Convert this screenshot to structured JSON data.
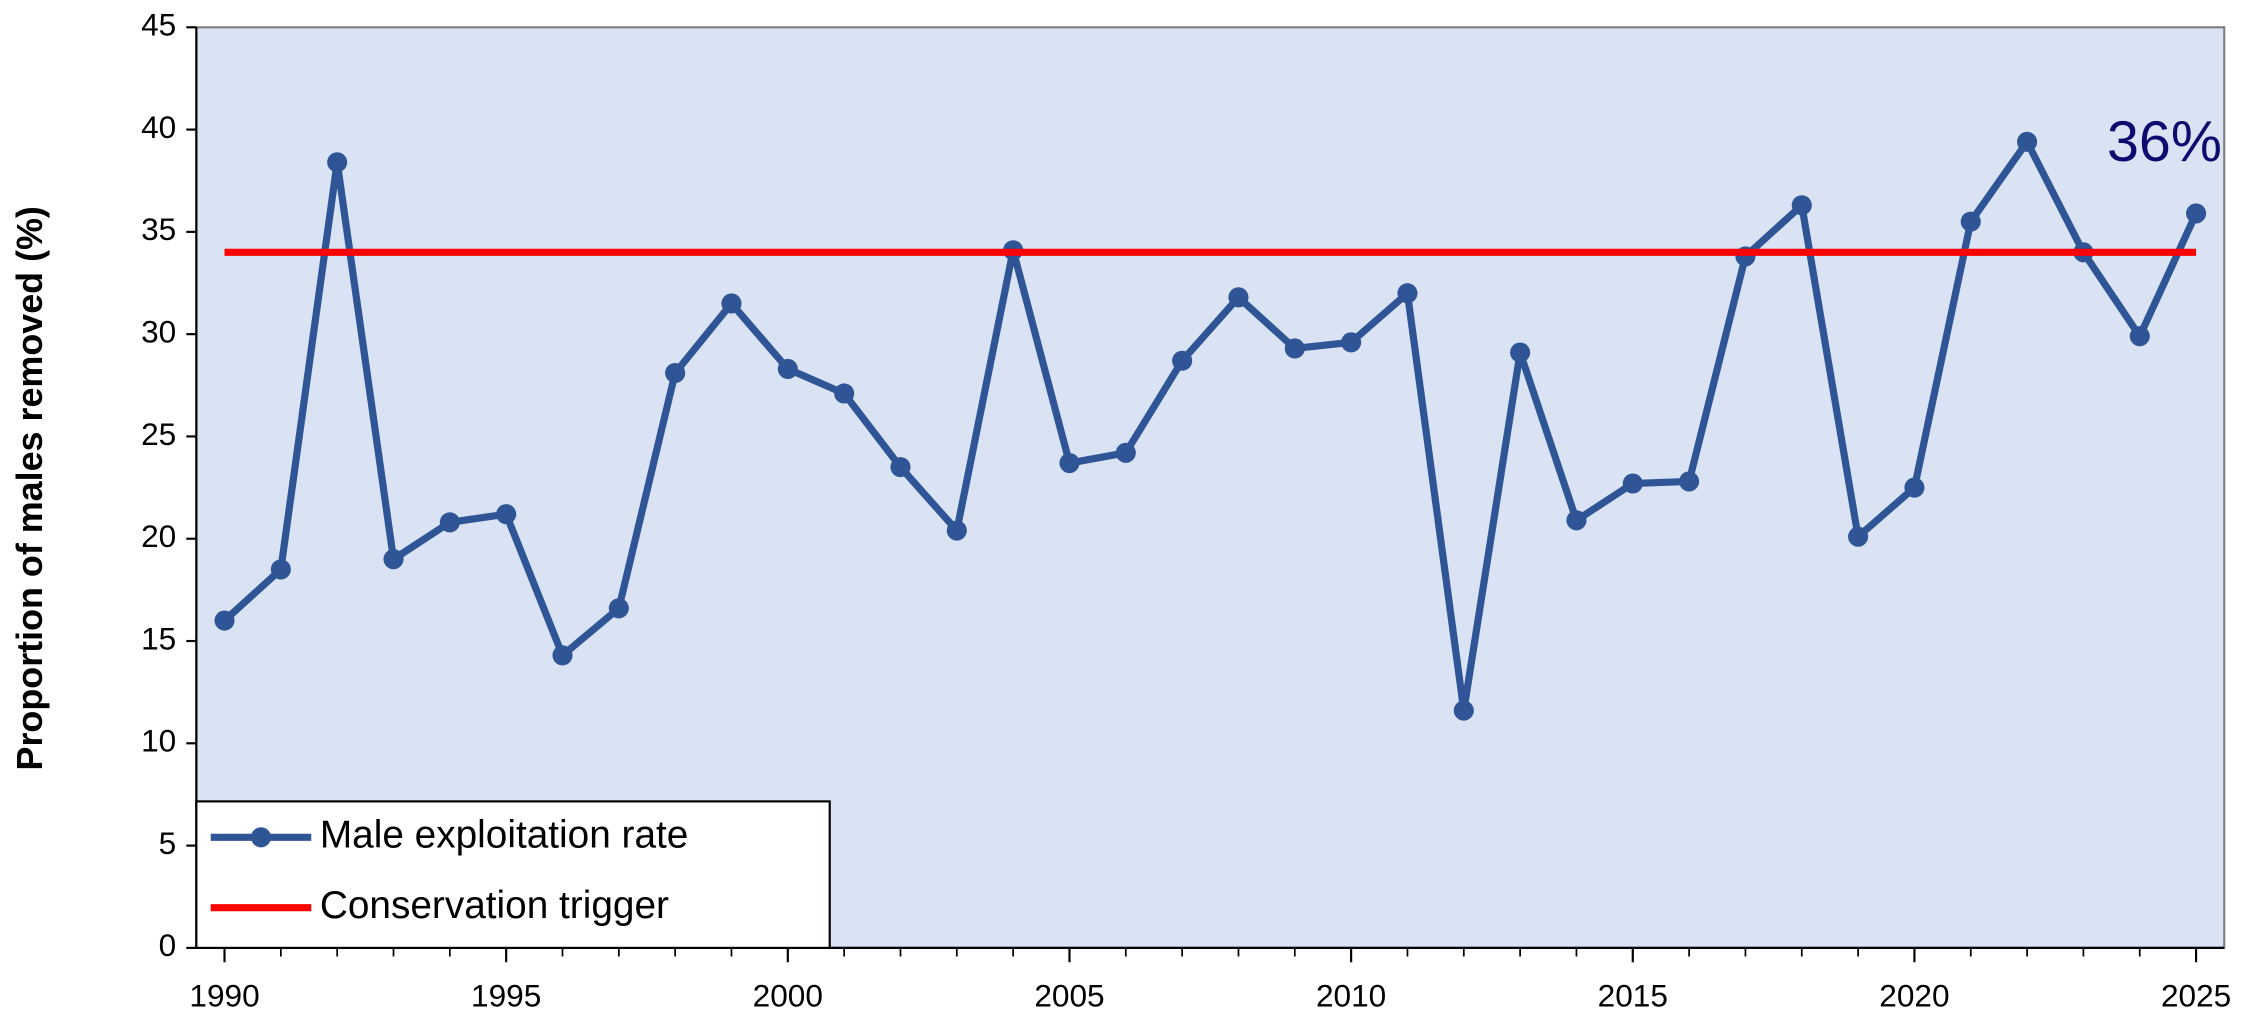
{
  "chart_data": {
    "type": "line",
    "y_label": "Proportion of males removed (%)",
    "annotation": "36%",
    "x": [
      1990,
      1991,
      1992,
      1993,
      1994,
      1995,
      1996,
      1997,
      1998,
      1999,
      2000,
      2001,
      2002,
      2003,
      2004,
      2005,
      2006,
      2007,
      2008,
      2009,
      2010,
      2011,
      2012,
      2013,
      2014,
      2015,
      2016,
      2017,
      2018,
      2019,
      2020,
      2021,
      2022,
      2023,
      2024,
      2025
    ],
    "series": [
      {
        "name": "Male exploitation rate",
        "color": "#2f5597",
        "markers": true,
        "values": [
          16.0,
          18.5,
          38.4,
          19.0,
          20.8,
          21.2,
          14.3,
          16.6,
          28.1,
          31.5,
          28.3,
          27.1,
          23.5,
          20.4,
          34.1,
          23.7,
          24.2,
          28.7,
          31.8,
          29.3,
          29.6,
          32.0,
          11.6,
          29.1,
          20.9,
          22.7,
          22.8,
          33.8,
          36.3,
          20.1,
          22.5,
          35.5,
          39.4,
          34.0,
          29.9,
          35.9
        ]
      },
      {
        "name": "Conservation trigger",
        "color": "#ff0000",
        "markers": false,
        "x": [
          1990,
          2025
        ],
        "values": [
          34,
          34
        ]
      }
    ],
    "xlim": [
      1989.5,
      2025.5
    ],
    "xticks": [
      1990,
      1995,
      2000,
      2005,
      2010,
      2015,
      2020,
      2025
    ],
    "ylim": [
      0,
      45
    ],
    "yticks": [
      0,
      5,
      10,
      15,
      20,
      25,
      30,
      35,
      40,
      45
    ],
    "background": "#dae3f3",
    "legend": "lower left"
  }
}
